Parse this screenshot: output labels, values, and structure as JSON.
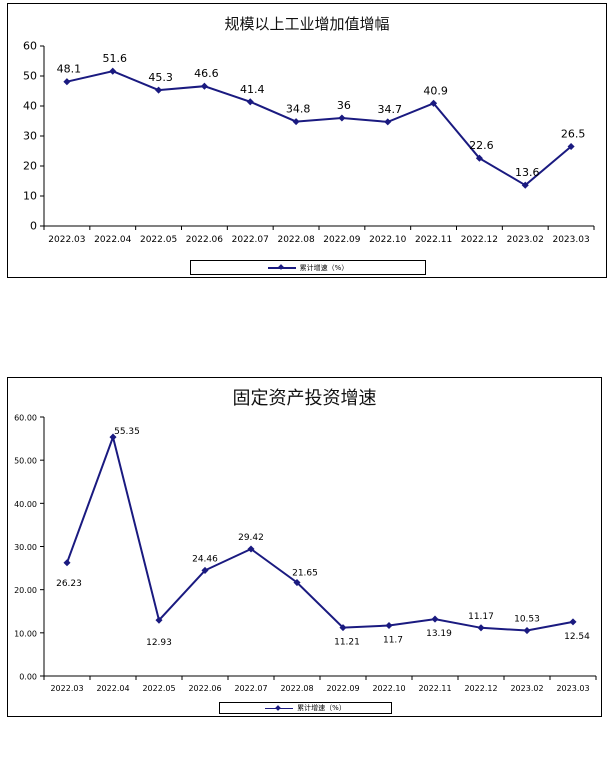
{
  "chart_data": [
    {
      "type": "line",
      "title": "规模以上工业增加值增幅",
      "categories": [
        "2022.03",
        "2022.04",
        "2022.05",
        "2022.06",
        "2022.07",
        "2022.08",
        "2022.09",
        "2022.10",
        "2022.11",
        "2022.12",
        "2023.02",
        "2023.03"
      ],
      "series": [
        {
          "name": "累计增速（%）",
          "values": [
            48.1,
            51.6,
            45.3,
            46.6,
            41.4,
            34.8,
            36,
            34.7,
            40.9,
            22.6,
            13.6,
            26.5
          ]
        }
      ],
      "data_labels": [
        "48.1",
        "51.6",
        "45.3",
        "46.6",
        "41.4",
        "34.8",
        "36",
        "34.7",
        "40.9",
        "22.6",
        "13.6",
        "26.5"
      ],
      "yticks": [
        "0",
        "10",
        "20",
        "30",
        "40",
        "50",
        "60"
      ],
      "ylim": [
        0,
        60
      ],
      "grid": false,
      "legend": "bottom",
      "color": "#1a1a80"
    },
    {
      "type": "line",
      "title": "固定资产投资增速",
      "categories": [
        "2022.03",
        "2022.04",
        "2022.05",
        "2022.06",
        "2022.07",
        "2022.08",
        "2022.09",
        "2022.10",
        "2022.11",
        "2022.12",
        "2023.02",
        "2023.03"
      ],
      "series": [
        {
          "name": "累计增速（%）",
          "values": [
            26.23,
            55.35,
            12.93,
            24.46,
            29.42,
            21.65,
            11.21,
            11.7,
            13.19,
            11.17,
            10.53,
            12.54
          ]
        }
      ],
      "data_labels": [
        "26.23",
        "55.35",
        "12.93",
        "24.46",
        "29.42",
        "21.65",
        "11.21",
        "11.7",
        "13.19",
        "11.17",
        "10.53",
        "12.54"
      ],
      "yticks": [
        "0.00",
        "10.00",
        "20.00",
        "30.00",
        "40.00",
        "50.00",
        "60.00"
      ],
      "ylim": [
        0,
        60
      ],
      "grid": false,
      "legend": "bottom",
      "color": "#1a1a80"
    }
  ]
}
